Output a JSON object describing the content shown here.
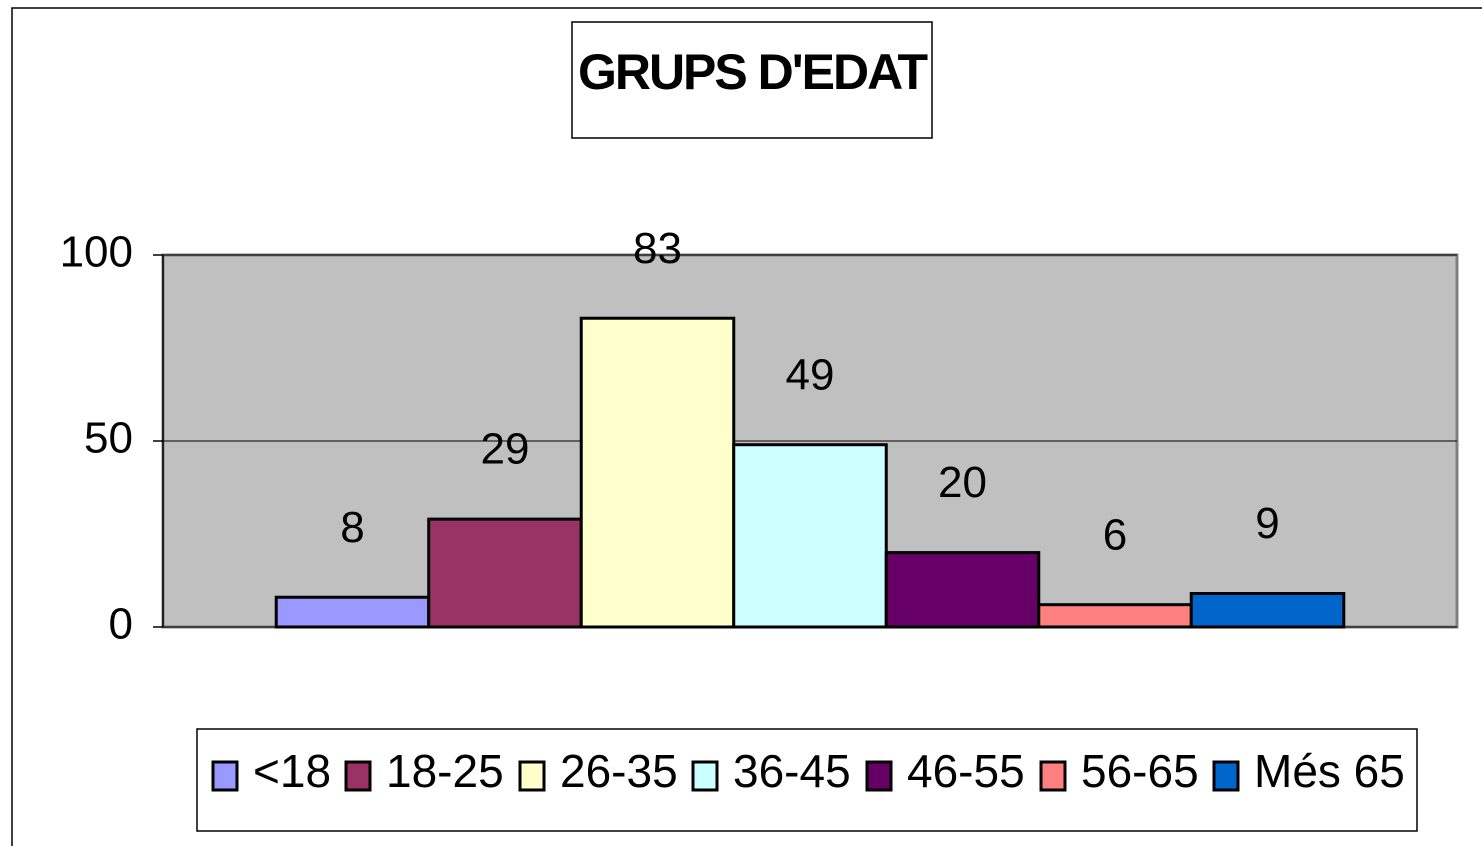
{
  "chart_data": {
    "type": "bar",
    "title": "GRUPS D'EDAT",
    "categories": [
      null
    ],
    "series": [
      {
        "name": "<18",
        "color": "#9999ff",
        "values": [
          8
        ]
      },
      {
        "name": "18-25",
        "color": "#993366",
        "values": [
          29
        ]
      },
      {
        "name": "26-35",
        "color": "#ffffcc",
        "values": [
          83
        ]
      },
      {
        "name": "36-45",
        "color": "#ccffff",
        "values": [
          49
        ]
      },
      {
        "name": "46-55",
        "color": "#660066",
        "values": [
          20
        ]
      },
      {
        "name": "56-65",
        "color": "#ff8080",
        "values": [
          6
        ]
      },
      {
        "name": "Més 65",
        "color": "#0066cc",
        "values": [
          9
        ]
      }
    ],
    "ylim": [
      0,
      100
    ],
    "yticks": [
      0,
      50,
      100
    ],
    "grid": true,
    "plot_background": "#c0c0c0",
    "legend": "bottom"
  }
}
